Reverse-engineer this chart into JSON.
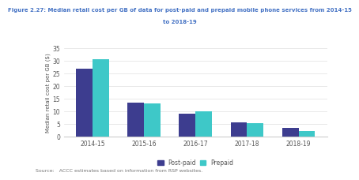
{
  "title_line1": "Figure 2.27: Median retail cost per GB of data for post-paid and prepaid mobile phone services from 2014-15",
  "title_line2": "to 2018-19",
  "categories": [
    "2014-15",
    "2015-16",
    "2016-17",
    "2017-18",
    "2018-19"
  ],
  "postpaid": [
    27,
    13.3,
    9,
    5.7,
    3.4
  ],
  "prepaid": [
    30.6,
    13.2,
    10,
    5.2,
    2.3
  ],
  "postpaid_color": "#3d3d8f",
  "prepaid_color": "#3ec8c8",
  "ylabel": "Median retail cost per GB ($)",
  "ylim": [
    0,
    35
  ],
  "yticks": [
    0,
    5,
    10,
    15,
    20,
    25,
    30,
    35
  ],
  "source": "Source:   ACCC estimates based on information from RSP websites.",
  "background_color": "#ffffff",
  "title_color": "#4472c4",
  "bar_width": 0.32,
  "legend_labels": [
    "Post-paid",
    "Prepaid"
  ]
}
